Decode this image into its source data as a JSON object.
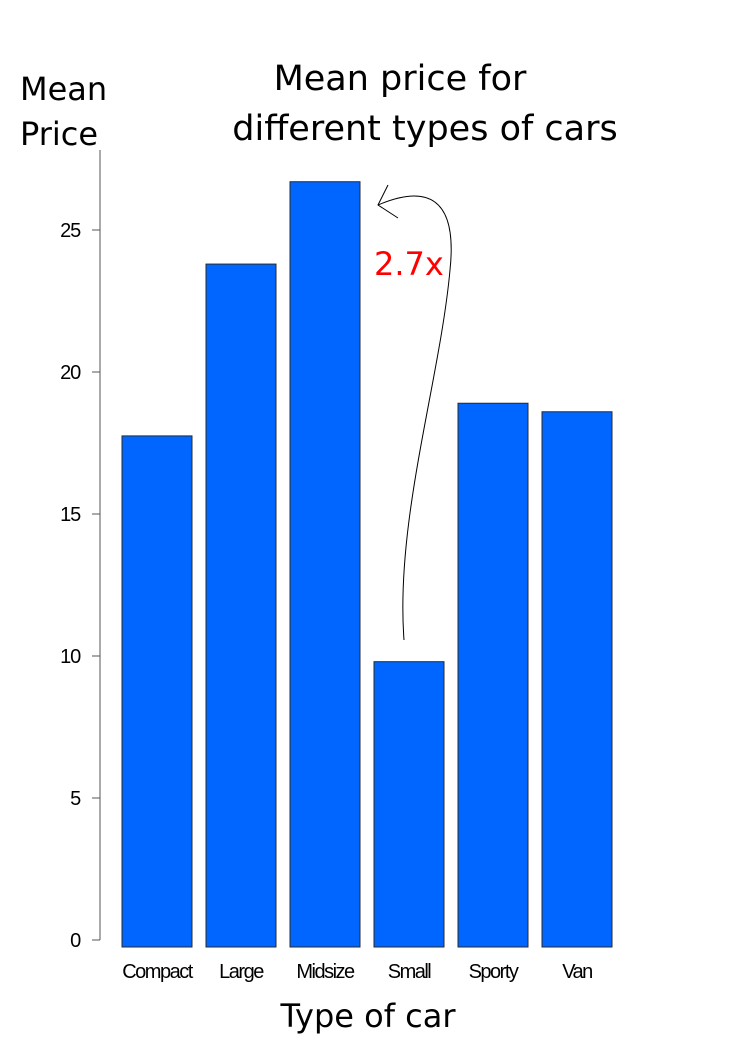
{
  "chart_data": {
    "type": "bar",
    "title_lines": [
      "Mean price for",
      "different types of cars"
    ],
    "ylabel_lines": [
      "Mean",
      "Price"
    ],
    "xlabel": "Type of car",
    "categories": [
      "Compact",
      "Large",
      "Midsize",
      "Small",
      "Sporty",
      "Van"
    ],
    "values": [
      17.75,
      23.8,
      26.7,
      9.8,
      18.9,
      18.6
    ],
    "ylim": [
      0,
      27.5
    ],
    "yticks": [
      0,
      5,
      10,
      15,
      20,
      25
    ],
    "grid": false,
    "bar_color": "#0066ff",
    "annotation": {
      "text": "2.7x",
      "color": "#ff0000",
      "from_category": "Small",
      "to_category": "Midsize"
    }
  }
}
